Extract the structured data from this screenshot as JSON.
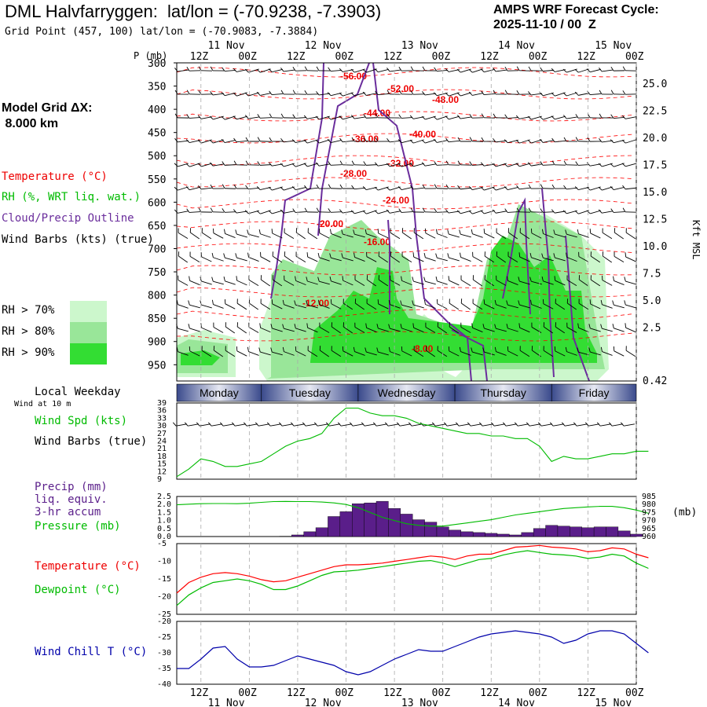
{
  "header": {
    "title": "DML Halvfarryggen:  lat/lon = (-70.9238, -7.3903)",
    "grid_point": "Grid Point (457, 100) lat/lon = (-70.9083, -7.3884)",
    "cycle_line1": "AMPS WRF Forecast Cycle:",
    "cycle_line2": "2025-11-10 / 00  Z",
    "model_grid_line1": "Model Grid ΔX:",
    "model_grid_line2": " 8.000 km"
  },
  "legend": {
    "temperature": "Temperature (°C)",
    "rh": "RH (%, WRT liq. wat.)",
    "cloud": "Cloud/Precip Outline",
    "wind_barbs": "Wind Barbs (kts) (true)",
    "rh70": "RH > 70%",
    "rh80": "RH > 80%",
    "rh90": "RH > 90%",
    "local_weekday": "Local Weekday",
    "wind_at": "Wind at 10 m",
    "wind_spd": "Wind Spd (kts)",
    "wind_barbs2": "Wind Barbs (true)",
    "precip1": "Precip (mm)",
    "precip2": "liq. equiv.",
    "precip3": "3-hr accum",
    "pressure": "Pressure (mb)",
    "temp2": "Temperature (°C)",
    "dewpoint": "Dewpoint (°C)",
    "windchill": "Wind Chill T (°C)"
  },
  "colors": {
    "temperature": "#ff0000",
    "dewpoint": "#00bb00",
    "windchill": "#0000aa",
    "cloud_outline": "#6a2d9c",
    "rh70": "#ccf7cc",
    "rh80": "#99e699",
    "rh90": "#33dd33",
    "precip": "#5a1e8a",
    "pressure": "#00bb00",
    "windspd": "#00bb00",
    "day_band": "#3a4a8c"
  },
  "chart_data": {
    "type": "meteogram",
    "time_axis": {
      "start": "2025-11-10 06Z",
      "end": "2025-11-15 00Z",
      "step_hours": 3,
      "tick_labels": [
        "12Z",
        "00Z",
        "12Z",
        "00Z",
        "12Z",
        "00Z",
        "12Z",
        "00Z",
        "12Z",
        "00Z"
      ],
      "date_labels": [
        "11 Nov",
        "12 Nov",
        "13 Nov",
        "14 Nov",
        "15 Nov"
      ],
      "weekdays": [
        "Monday",
        "Tuesday",
        "Wednesday",
        "Thursday",
        "Friday"
      ]
    },
    "cross_section": {
      "ylabel": "P (mb)",
      "pressure_ticks": [
        300,
        350,
        400,
        450,
        500,
        550,
        600,
        650,
        700,
        750,
        800,
        850,
        900,
        950
      ],
      "height_label": "Kft MSL",
      "height_ticks": [
        "25.0",
        "22.5",
        "20.0",
        "17.5",
        "15.0",
        "12.5",
        "10.0",
        "7.5",
        "5.0",
        "2.5",
        "0.42"
      ],
      "temperature_labels": [
        "-56.00",
        "-52.00",
        "-48.00",
        "-44.00",
        "-40.00",
        "-36.00",
        "-32.00",
        "-28.00",
        "-24.00",
        "-20.00",
        "-16.00",
        "-12.00",
        "-8.00"
      ]
    },
    "wind_speed": {
      "ylabel": "Wind Spd (kts)",
      "y_ticks": [
        9,
        12,
        15,
        18,
        21,
        24,
        27,
        30,
        33,
        36,
        39
      ],
      "ylim": [
        9,
        39
      ],
      "values": [
        10,
        13,
        17,
        16,
        14,
        14,
        15,
        16,
        19,
        22,
        24,
        25,
        27,
        33,
        37,
        37,
        35,
        34,
        34,
        33,
        31,
        30,
        29,
        28,
        27,
        27,
        26,
        26,
        25,
        25,
        22,
        16,
        18,
        17,
        17,
        18,
        19,
        19,
        20,
        20
      ]
    },
    "precip_pressure": {
      "precip_ticks": [
        "0.0",
        "0.5",
        "1.0",
        "1.5",
        "2.0",
        "2.5"
      ],
      "precip_ylim": [
        0,
        2.5
      ],
      "pressure_ticks": [
        960,
        965,
        970,
        975,
        980,
        985
      ],
      "pressure_ylim": [
        960,
        985
      ],
      "precip": [
        0,
        0,
        0,
        0,
        0,
        0,
        0,
        0,
        0,
        0.02,
        0.1,
        0.3,
        0.55,
        1.25,
        1.55,
        2.05,
        2.1,
        2.2,
        1.75,
        1.4,
        1.05,
        0.9,
        0.6,
        0.4,
        0.3,
        0.25,
        0.2,
        0.15,
        0.1,
        0.25,
        0.5,
        0.7,
        0.65,
        0.6,
        0.55,
        0.6,
        0.6,
        0.35,
        0.15,
        0
      ],
      "pressure": [
        979.8,
        980.2,
        980.5,
        980.6,
        980.6,
        980.5,
        980.8,
        981.3,
        981.8,
        981.9,
        981.8,
        981.8,
        981.5,
        981.0,
        980.0,
        978.0,
        975.0,
        972.0,
        970.0,
        968.0,
        967.0,
        966.5,
        966.5,
        967.5,
        968.5,
        969.5,
        970.5,
        972.0,
        973.5,
        974.5,
        975.5,
        976.5,
        977.5,
        978.0,
        978.5,
        978.8,
        978.8,
        978.0,
        976.5,
        974.5
      ]
    },
    "temperature": {
      "y_ticks": [
        -25,
        -20,
        -15,
        -10,
        -5
      ],
      "ylim": [
        -25,
        -5
      ],
      "temp": [
        -19.0,
        -16.0,
        -14.5,
        -13.5,
        -13.2,
        -13.5,
        -14.2,
        -15.2,
        -15.8,
        -15.5,
        -14.5,
        -13.5,
        -12.5,
        -11.5,
        -11.0,
        -11.0,
        -10.8,
        -10.5,
        -10.0,
        -9.5,
        -9.0,
        -8.5,
        -8.8,
        -9.5,
        -8.5,
        -8.0,
        -8.0,
        -7.0,
        -6.0,
        -5.8,
        -5.5,
        -6.0,
        -6.2,
        -6.5,
        -7.3,
        -7.0,
        -6.2,
        -6.5,
        -8.0,
        -9.0
      ],
      "dewpoint": [
        -22.5,
        -19.5,
        -17.5,
        -16.0,
        -15.5,
        -15.0,
        -15.5,
        -16.5,
        -18.0,
        -18.0,
        -17.0,
        -15.5,
        -14.0,
        -13.0,
        -12.8,
        -12.5,
        -12.0,
        -11.5,
        -11.0,
        -10.5,
        -10.0,
        -9.8,
        -10.5,
        -11.5,
        -10.5,
        -9.5,
        -9.2,
        -8.2,
        -7.5,
        -7.0,
        -7.5,
        -8.0,
        -8.2,
        -8.5,
        -9.2,
        -8.8,
        -8.0,
        -8.5,
        -10.5,
        -12.0
      ]
    },
    "wind_chill": {
      "y_ticks": [
        -40,
        -35,
        -30,
        -25,
        -20
      ],
      "ylim": [
        -40,
        -20
      ],
      "values": [
        -35.0,
        -35.0,
        -32.0,
        -28.5,
        -28.0,
        -32.0,
        -34.5,
        -34.5,
        -34.0,
        -32.5,
        -31.0,
        -32.0,
        -33.0,
        -34.0,
        -36.0,
        -37.0,
        -36.0,
        -34.0,
        -32.0,
        -30.5,
        -29.0,
        -29.5,
        -29.5,
        -28.0,
        -26.5,
        -25.0,
        -24.0,
        -23.5,
        -23.0,
        -23.5,
        -24.0,
        -25.0,
        -27.0,
        -26.0,
        -24.0,
        -23.0,
        -23.0,
        -24.0,
        -27.0,
        -30.0
      ]
    }
  }
}
